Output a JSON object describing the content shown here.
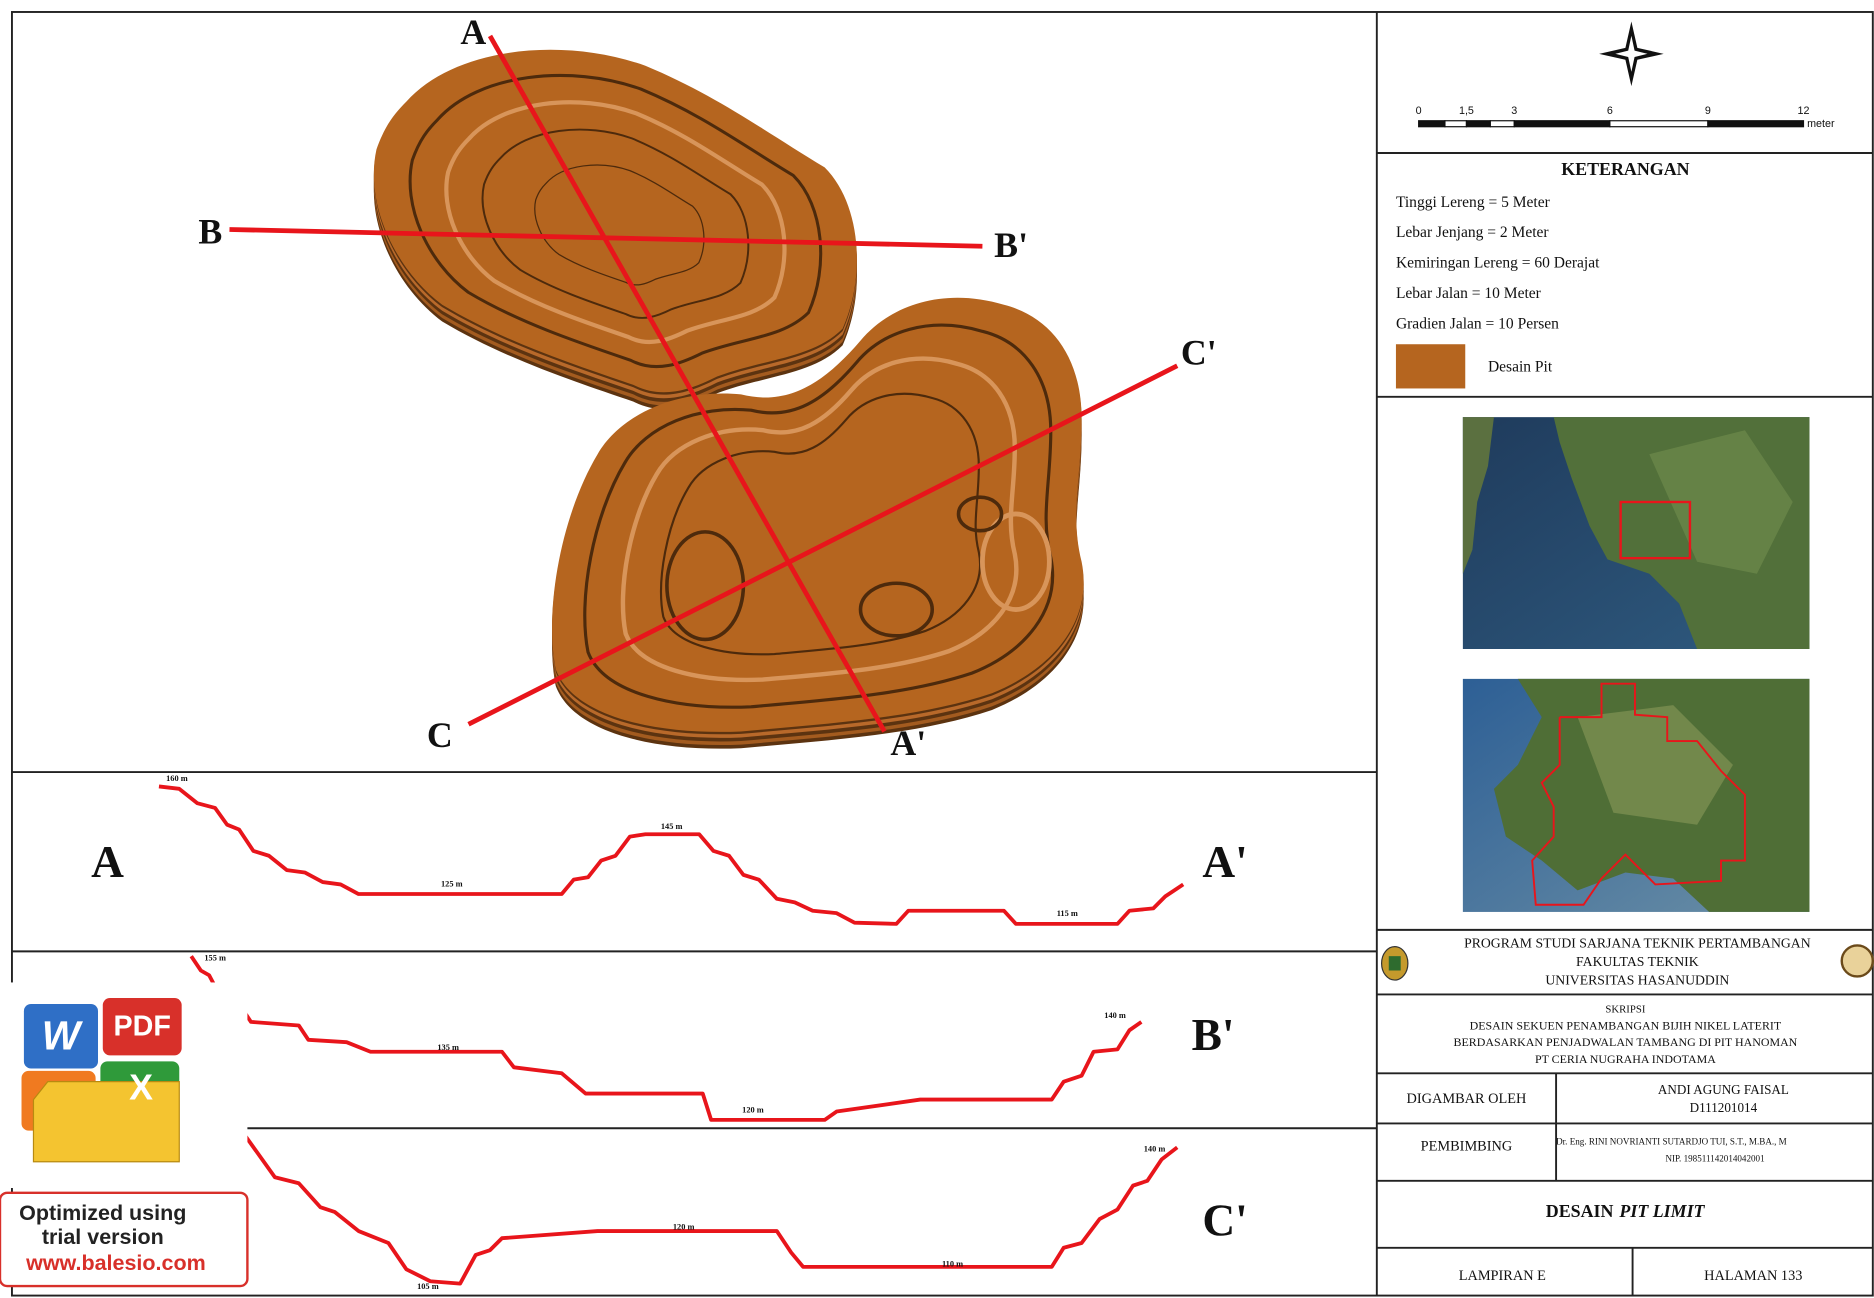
{
  "plan": {
    "section_labels": [
      "A",
      "A'",
      "B",
      "B'",
      "C",
      "C'"
    ]
  },
  "sections": [
    {
      "start": "A",
      "end": "A'",
      "elevations": [
        "160 m",
        "125 m",
        "145 m",
        "115 m"
      ]
    },
    {
      "end": "B'",
      "elevations": [
        "155 m",
        "135 m",
        "120 m",
        "140 m"
      ]
    },
    {
      "end": "C'",
      "elevations": [
        "105 m",
        "120 m",
        "110 m",
        "140 m"
      ]
    }
  ],
  "scale_bar": {
    "labels": [
      "0",
      "1,5",
      "3",
      "6",
      "9",
      "12"
    ],
    "unit": "meter"
  },
  "legend": {
    "title": "KETERANGAN",
    "items": [
      "Tinggi Lereng = 5 Meter",
      "Lebar Jenjang = 2 Meter",
      "Kemiringan Lereng = 60 Derajat",
      "Lebar Jalan = 10 Meter",
      "Gradien Jalan = 10 Persen"
    ],
    "swatch_label": "Desain Pit"
  },
  "institution": {
    "lines": [
      "PROGRAM STUDI SARJANA TEKNIK PERTAMBANGAN",
      "FAKULTAS TEKNIK",
      "UNIVERSITAS HASANUDDIN"
    ]
  },
  "thesis": {
    "label": "SKRIPSI",
    "lines": [
      "DESAIN SEKUEN PENAMBANGAN BIJIH NIKEL LATERIT",
      "BERDASARKAN PENJADWALAN TAMBANG DI PIT HANOMAN",
      "PT CERIA NUGRAHA INDOTAMA"
    ]
  },
  "drawn_by": {
    "label": "DIGAMBAR OLEH",
    "name": "ANDI AGUNG FAISAL",
    "id": "D111201014"
  },
  "supervisor": {
    "label": "PEMBIMBING",
    "name": "Dr. Eng. RINI NOVRIANTI SUTARDJO TUI, S.T., M.BA., M",
    "nip": "NIP. 198511142014042001"
  },
  "title": {
    "text": "DESAIN",
    "italic": "PIT LIMIT"
  },
  "footer": {
    "appendix": "LAMPIRAN E",
    "page": "HALAMAN 133"
  },
  "watermark": {
    "icons": [
      "W",
      "PDF",
      "X"
    ],
    "lines": [
      "Optimized using",
      "trial version",
      "www.balesio.com"
    ]
  }
}
